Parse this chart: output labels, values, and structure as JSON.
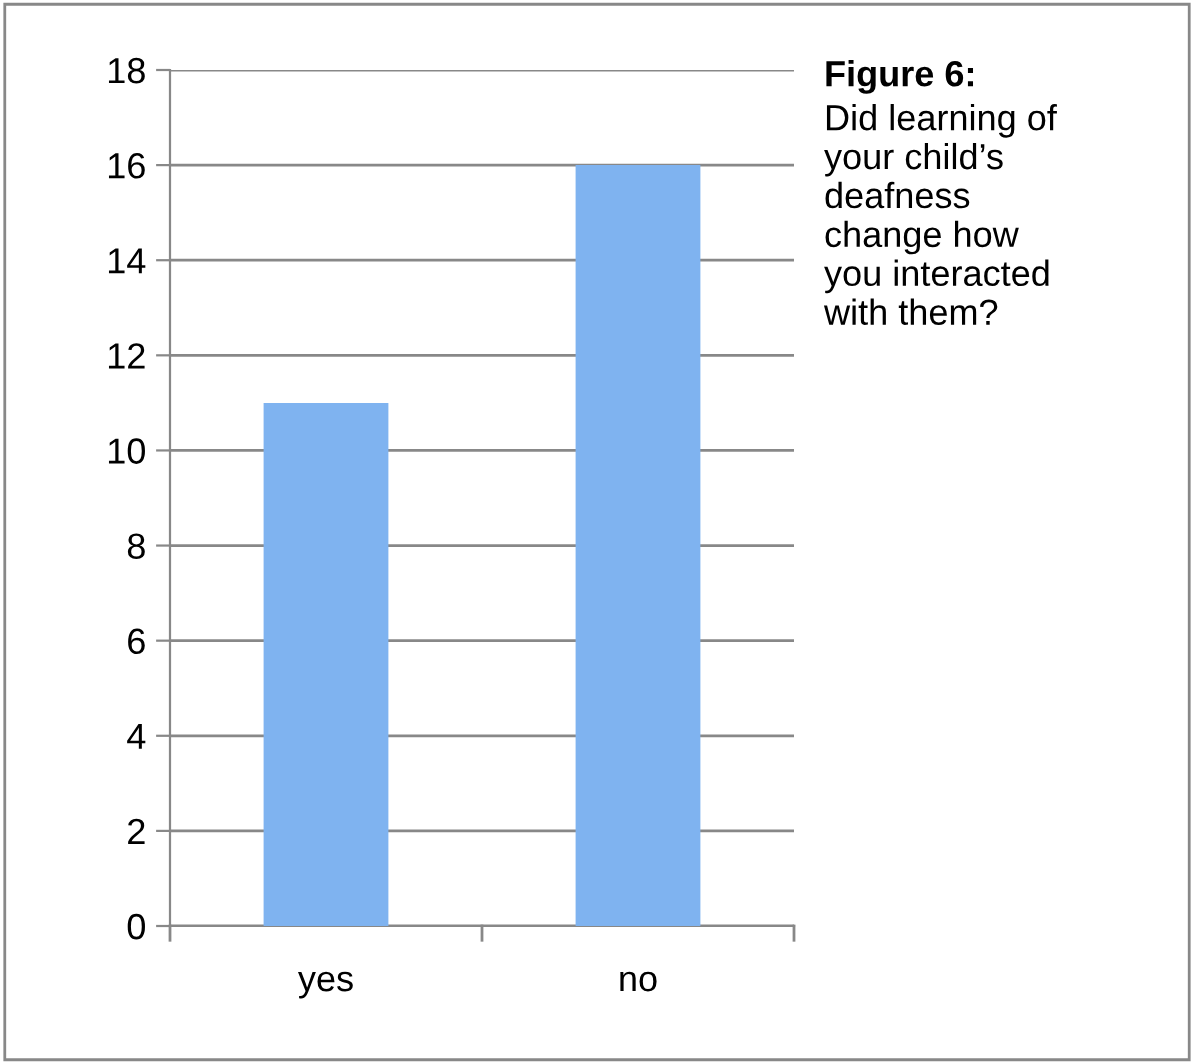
{
  "chart_data": {
    "type": "bar",
    "title": "Figure 6:",
    "subtitle": "Did learning of\nyour child’s\ndeafness\nchange how\nyou interacted\nwith them?",
    "categories": [
      "yes",
      "no"
    ],
    "values": [
      11,
      16
    ],
    "color": "#7fb3f0",
    "ylim": [
      0,
      18
    ],
    "yticks": [
      0,
      2,
      4,
      6,
      8,
      10,
      12,
      14,
      16,
      18
    ],
    "grid": "y",
    "legend": false
  }
}
